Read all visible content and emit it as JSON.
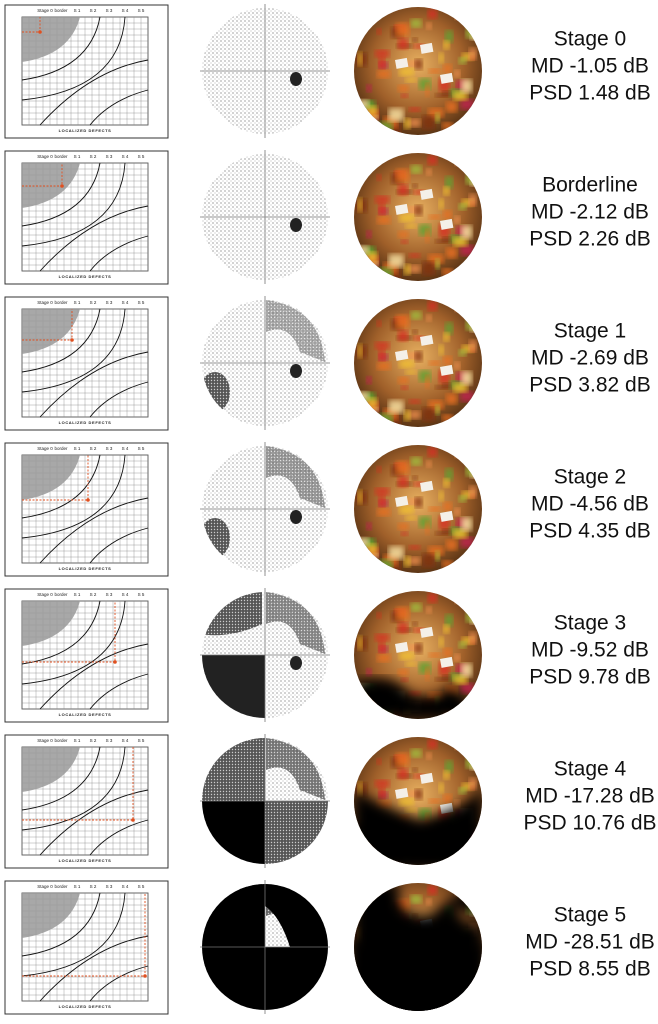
{
  "gss": {
    "header_labels": [
      "Stage 0",
      "border",
      "S 1",
      "S 2",
      "S 3",
      "S 4",
      "S 5"
    ],
    "footer_label": "LOCALIZED DEFECTS"
  },
  "rows": [
    {
      "stage": "Stage 0",
      "md": "MD -1.05 dB",
      "psd": "PSD 1.48 dB"
    },
    {
      "stage": "Borderline",
      "md": "MD -2.12 dB",
      "psd": "PSD 2.26 dB"
    },
    {
      "stage": "Stage 1",
      "md": "MD -2.69 dB",
      "psd": "PSD 3.82 dB"
    },
    {
      "stage": "Stage 2",
      "md": "MD -4.56 dB",
      "psd": "PSD 4.35 dB"
    },
    {
      "stage": "Stage 3",
      "md": "MD -9.52 dB",
      "psd": "PSD 9.78 dB"
    },
    {
      "stage": "Stage 4",
      "md": "MD -17.28 dB",
      "psd": "PSD 10.76 dB"
    },
    {
      "stage": "Stage 5",
      "md": "MD -28.51 dB",
      "psd": "PSD 8.55 dB"
    }
  ]
}
